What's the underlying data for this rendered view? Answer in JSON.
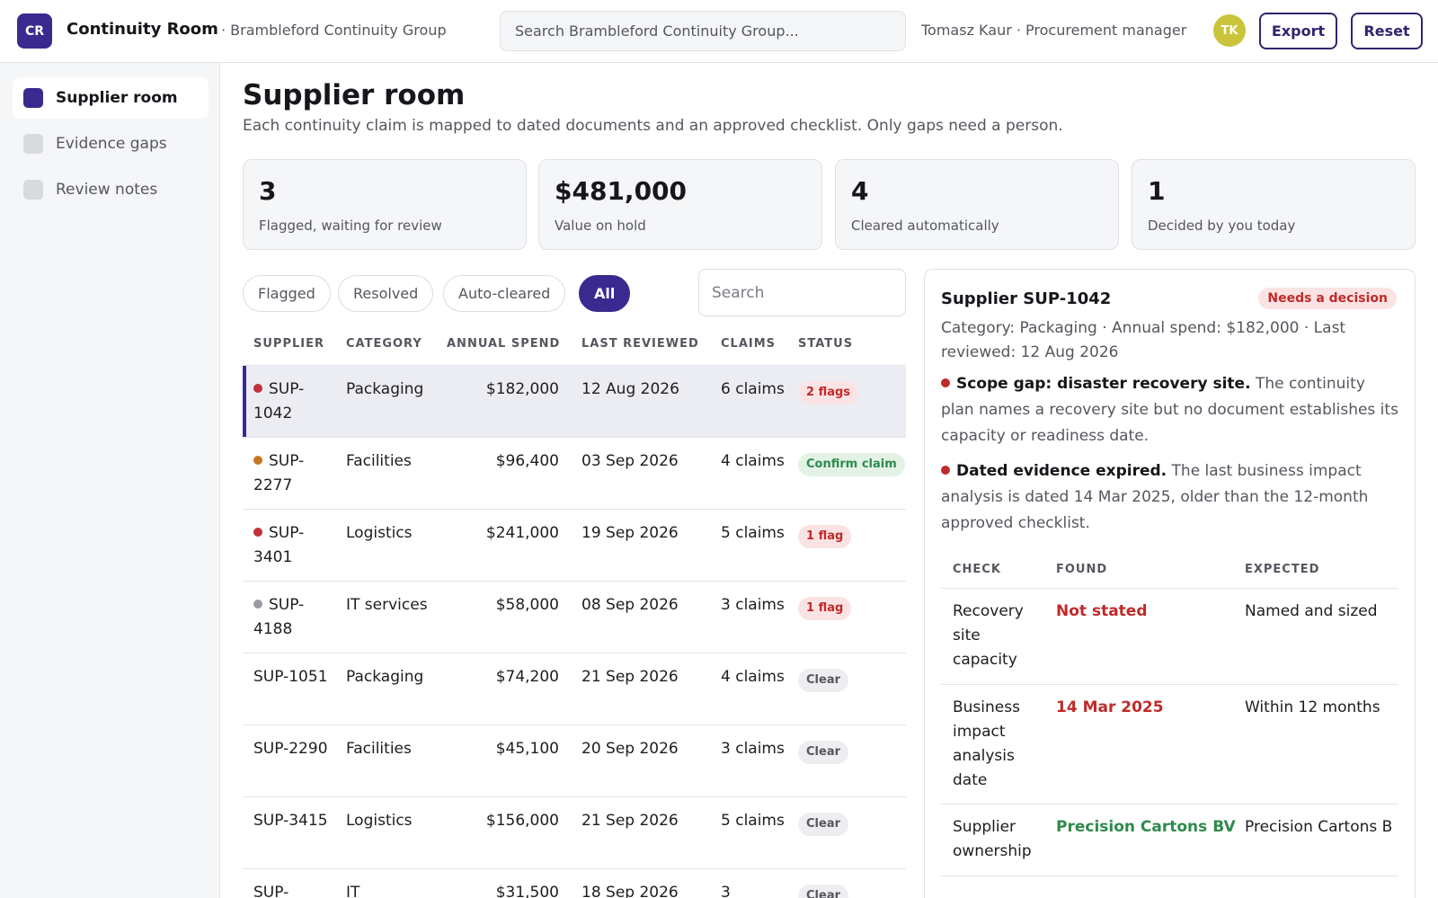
{
  "header": {
    "logo_initials": "CR",
    "app_title": "Continuity Room",
    "org_name": "· Brambleford Continuity Group",
    "search_placeholder": "Search Brambleford Continuity Group...",
    "user_label": "Tomasz Kaur · Procurement manager",
    "avatar_initials": "TK",
    "export_label": "Export",
    "reset_label": "Reset"
  },
  "sidebar": {
    "items": [
      {
        "label": "Supplier room",
        "active": true
      },
      {
        "label": "Evidence gaps",
        "active": false
      },
      {
        "label": "Review notes",
        "active": false
      }
    ]
  },
  "main": {
    "title": "Supplier room",
    "subtitle": "Each continuity claim is mapped to dated documents and an approved checklist. Only gaps need a person.",
    "stats": [
      {
        "value": "3",
        "label": "Flagged, waiting for review"
      },
      {
        "value": "$481,000",
        "label": "Value on hold"
      },
      {
        "value": "4",
        "label": "Cleared automatically"
      },
      {
        "value": "1",
        "label": "Decided by you today"
      }
    ],
    "filters": [
      {
        "label": "Flagged",
        "active": false
      },
      {
        "label": "Resolved",
        "active": false
      },
      {
        "label": "Auto-cleared",
        "active": false
      },
      {
        "label": "All",
        "active": true
      }
    ],
    "table_search_placeholder": "Search"
  },
  "table": {
    "columns": [
      "SUPPLIER",
      "CATEGORY",
      "ANNUAL SPEND",
      "LAST REVIEWED",
      "CLAIMS",
      "STATUS"
    ],
    "rows": [
      {
        "supplier": "SUP-1042",
        "category": "Packaging",
        "spend": "$182,000",
        "reviewed": "12 Aug 2026",
        "claims": "6 claims",
        "status": "2 flags",
        "status_kind": "flag",
        "dot": "#c0323a",
        "selected": true
      },
      {
        "supplier": "SUP-2277",
        "category": "Facilities",
        "spend": "$96,400",
        "reviewed": "03 Sep 2026",
        "claims": "4 claims",
        "status": "Confirm claim",
        "status_kind": "confirm",
        "dot": "#c8761f",
        "selected": false
      },
      {
        "supplier": "SUP-3401",
        "category": "Logistics",
        "spend": "$241,000",
        "reviewed": "19 Sep 2026",
        "claims": "5 claims",
        "status": "1 flag",
        "status_kind": "flag",
        "dot": "#c0323a",
        "selected": false
      },
      {
        "supplier": "SUP-4188",
        "category": "IT services",
        "spend": "$58,000",
        "reviewed": "08 Sep 2026",
        "claims": "3 claims",
        "status": "1 flag",
        "status_kind": "flag",
        "dot": "#9a9aa8",
        "selected": false
      },
      {
        "supplier": "SUP-1051",
        "category": "Packaging",
        "spend": "$74,200",
        "reviewed": "21 Sep 2026",
        "claims": "4 claims",
        "status": "Clear",
        "status_kind": "clear",
        "dot": "",
        "selected": false
      },
      {
        "supplier": "SUP-2290",
        "category": "Facilities",
        "spend": "$45,100",
        "reviewed": "20 Sep 2026",
        "claims": "3 claims",
        "status": "Clear",
        "status_kind": "clear",
        "dot": "",
        "selected": false
      },
      {
        "supplier": "SUP-3415",
        "category": "Logistics",
        "spend": "$156,000",
        "reviewed": "21 Sep 2026",
        "claims": "5 claims",
        "status": "Clear",
        "status_kind": "clear",
        "dot": "",
        "selected": false
      },
      {
        "supplier": "SUP-",
        "category": "IT",
        "spend": "$31,500",
        "reviewed": "18 Sep 2026",
        "claims": "3",
        "status": "Clear",
        "status_kind": "clear",
        "dot": "",
        "selected": false
      }
    ]
  },
  "detail": {
    "title": "Supplier SUP-1042",
    "badge": "Needs a decision",
    "meta": "Category: Packaging · Annual spend: $182,000 · Last reviewed: 12 Aug 2026",
    "findings": [
      {
        "title": "Scope gap: disaster recovery site.",
        "text": "The continuity plan names a recovery site but no document establishes its capacity or readiness date."
      },
      {
        "title": "Dated evidence expired.",
        "text": "The last business impact analysis is dated 14 Mar 2025, older than the 12-month approved checklist."
      }
    ],
    "check_columns": [
      "CHECK",
      "FOUND",
      "EXPECTED"
    ],
    "checks": [
      {
        "check": "Recovery site capacity",
        "found": "Not stated",
        "found_kind": "bad",
        "expected": "Named and sized"
      },
      {
        "check": "Business impact analysis date",
        "found": "14 Mar 2025",
        "found_kind": "bad",
        "expected": "Within 12 months"
      },
      {
        "check": "Supplier ownership",
        "found": "Precision Cartons BV",
        "found_kind": "good",
        "expected": "Precision Cartons B"
      }
    ]
  },
  "colors": {
    "accent": "#3a2a8f",
    "flag_bg": "#fbe3e3",
    "flag_text": "#c02a2a",
    "confirm_bg": "#e2f3e6",
    "confirm_text": "#2f8a4c",
    "clear_bg": "#eeeef1",
    "clear_text": "#55565f"
  }
}
